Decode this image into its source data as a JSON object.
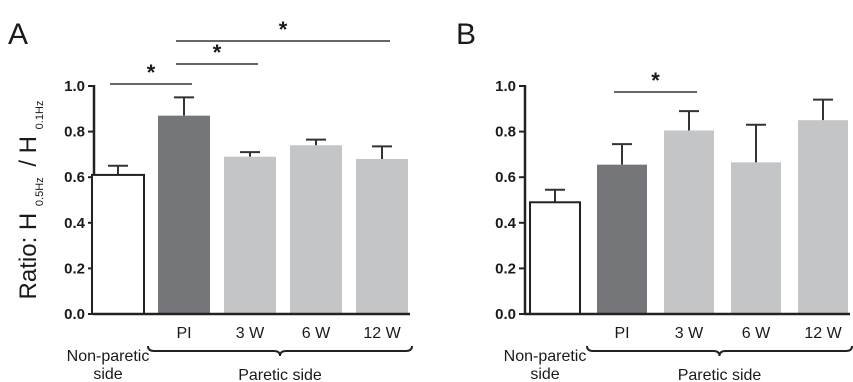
{
  "ylabel": {
    "main": "Ratio: H",
    "sub1": "0.5Hz",
    "sep": "/ H",
    "sub2": "0.1Hz"
  },
  "chart_data": [
    {
      "type": "bar",
      "panel": "A",
      "categories": [
        "Non-paretic side",
        "PI",
        "3 W",
        "6 W",
        "12 W"
      ],
      "category_labels": [
        "",
        "PI",
        "3 W",
        "6 W",
        "12 W"
      ],
      "values": [
        0.61,
        0.87,
        0.69,
        0.74,
        0.68
      ],
      "errors": [
        0.04,
        0.08,
        0.02,
        0.025,
        0.055
      ],
      "colors": [
        "#ffffff",
        "#75767a",
        "#c4c5c7",
        "#c4c5c7",
        "#c4c5c7"
      ],
      "ylim": [
        0,
        1.0
      ],
      "yticks": [
        "0.0",
        "0.2",
        "0.4",
        "0.6",
        "0.8",
        "1.0"
      ],
      "group_labels": {
        "left": [
          "Non-paretic",
          "side"
        ],
        "right": "Paretic side"
      },
      "significance": [
        {
          "from": 0,
          "to": 1,
          "label": "*"
        },
        {
          "from": 1,
          "to": 2,
          "label": "*"
        },
        {
          "from": 1,
          "to": 4,
          "label": "*"
        }
      ]
    },
    {
      "type": "bar",
      "panel": "B",
      "categories": [
        "Non-paretic side",
        "PI",
        "3 W",
        "6 W",
        "12 W"
      ],
      "category_labels": [
        "",
        "PI",
        "3 W",
        "6 W",
        "12 W"
      ],
      "values": [
        0.49,
        0.655,
        0.805,
        0.665,
        0.85
      ],
      "errors": [
        0.055,
        0.09,
        0.085,
        0.165,
        0.09
      ],
      "colors": [
        "#ffffff",
        "#75767a",
        "#c4c5c7",
        "#c4c5c7",
        "#c4c5c7"
      ],
      "ylim": [
        0,
        1.0
      ],
      "yticks": [
        "0.0",
        "0.2",
        "0.4",
        "0.6",
        "0.8",
        "1.0"
      ],
      "group_labels": {
        "left": [
          "Non-paretic",
          "side"
        ],
        "right": "Paretic side"
      },
      "significance": [
        {
          "from": 1,
          "to": 2,
          "label": "*"
        }
      ]
    }
  ]
}
